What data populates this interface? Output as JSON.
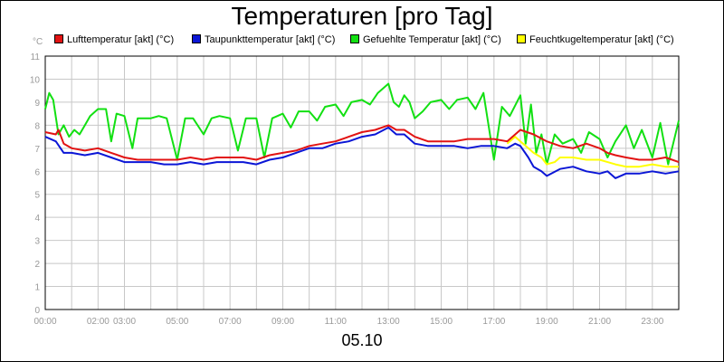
{
  "colors": {
    "red": "#e21313",
    "blue": "#0b16d6",
    "green": "#12e012",
    "yellow": "#ffff00",
    "grid": "#c8c8c8",
    "tick_text": "#999999"
  },
  "chart_data": {
    "type": "line",
    "title": "Temperaturen [pro Tag]",
    "unit": "°C",
    "xlabel": "05.10",
    "ylim": [
      0,
      11
    ],
    "xlim": [
      0,
      24
    ],
    "y_ticks": [
      "0",
      "1",
      "2",
      "3",
      "4",
      "5",
      "6",
      "7",
      "8",
      "9",
      "10",
      "11"
    ],
    "x_ticks": [
      {
        "x": 0,
        "label": "00:00"
      },
      {
        "x": 2,
        "label": "02:00"
      },
      {
        "x": 3,
        "label": "03:00"
      },
      {
        "x": 5,
        "label": "05:00"
      },
      {
        "x": 7,
        "label": "07:00"
      },
      {
        "x": 9,
        "label": "09:00"
      },
      {
        "x": 11,
        "label": "11:00"
      },
      {
        "x": 13,
        "label": "13:00"
      },
      {
        "x": 15,
        "label": "15:00"
      },
      {
        "x": 17,
        "label": "17:00"
      },
      {
        "x": 19,
        "label": "19:00"
      },
      {
        "x": 21,
        "label": "21:00"
      },
      {
        "x": 23,
        "label": "23:00"
      }
    ],
    "x_grid": [
      0,
      1,
      2,
      3,
      4,
      5,
      6,
      7,
      8,
      9,
      10,
      11,
      12,
      13,
      14,
      15,
      16,
      17,
      18,
      19,
      20,
      21,
      22,
      23,
      24
    ],
    "series": [
      {
        "name": "Lufttemperatur [akt] (°C)",
        "color": "#e21313",
        "x": [
          0,
          0.4,
          0.5,
          0.7,
          1,
          1.5,
          2,
          2.5,
          3,
          3.5,
          4,
          4.5,
          5,
          5.5,
          6,
          6.5,
          7,
          7.5,
          8,
          8.5,
          9,
          9.5,
          10,
          10.5,
          11,
          11.5,
          12,
          12.5,
          13,
          13.3,
          13.6,
          14,
          14.5,
          15,
          15.5,
          16,
          16.5,
          17,
          17.5,
          18,
          18.5,
          19,
          19.5,
          20,
          20.5,
          21,
          21.3,
          21.6,
          22,
          22.5,
          23,
          23.5,
          24
        ],
        "values": [
          7.7,
          7.6,
          7.8,
          7.2,
          7.0,
          6.9,
          7.0,
          6.8,
          6.6,
          6.5,
          6.5,
          6.5,
          6.5,
          6.6,
          6.5,
          6.6,
          6.6,
          6.6,
          6.5,
          6.7,
          6.8,
          6.9,
          7.1,
          7.2,
          7.3,
          7.5,
          7.7,
          7.8,
          8.0,
          7.8,
          7.8,
          7.5,
          7.3,
          7.3,
          7.3,
          7.4,
          7.4,
          7.4,
          7.3,
          7.8,
          7.6,
          7.3,
          7.1,
          7.0,
          7.2,
          7.0,
          6.8,
          6.7,
          6.6,
          6.5,
          6.5,
          6.6,
          6.4
        ]
      },
      {
        "name": "Taupunkttemperatur [akt] (°C)",
        "color": "#0b16d6",
        "x": [
          0,
          0.4,
          0.7,
          1,
          1.5,
          2,
          2.5,
          3,
          3.5,
          4,
          4.5,
          5,
          5.5,
          6,
          6.5,
          7,
          7.5,
          8,
          8.5,
          9,
          9.5,
          10,
          10.5,
          11,
          11.5,
          12,
          12.5,
          13,
          13.3,
          13.6,
          14,
          14.5,
          15,
          15.5,
          16,
          16.5,
          17,
          17.5,
          17.8,
          18,
          18.3,
          18.5,
          18.8,
          19,
          19.5,
          20,
          20.5,
          21,
          21.3,
          21.6,
          22,
          22.5,
          23,
          23.5,
          24
        ],
        "values": [
          7.5,
          7.3,
          6.8,
          6.8,
          6.7,
          6.8,
          6.6,
          6.4,
          6.4,
          6.4,
          6.3,
          6.3,
          6.4,
          6.3,
          6.4,
          6.4,
          6.4,
          6.3,
          6.5,
          6.6,
          6.8,
          7.0,
          7.0,
          7.2,
          7.3,
          7.5,
          7.6,
          7.9,
          7.6,
          7.6,
          7.2,
          7.1,
          7.1,
          7.1,
          7.0,
          7.1,
          7.1,
          7.0,
          7.2,
          7.1,
          6.6,
          6.2,
          6.0,
          5.8,
          6.1,
          6.2,
          6.0,
          5.9,
          6.0,
          5.7,
          5.9,
          5.9,
          6.0,
          5.9,
          6.0
        ]
      },
      {
        "name": "Gefuehlte Temperatur [akt] (°C)",
        "color": "#12e012",
        "x": [
          0,
          0.15,
          0.3,
          0.5,
          0.7,
          0.9,
          1.1,
          1.3,
          1.5,
          1.7,
          2,
          2.3,
          2.5,
          2.7,
          3,
          3.3,
          3.5,
          3.7,
          4,
          4.3,
          4.6,
          5,
          5.3,
          5.6,
          6,
          6.3,
          6.6,
          7,
          7.3,
          7.6,
          8,
          8.3,
          8.6,
          9,
          9.3,
          9.6,
          10,
          10.3,
          10.6,
          11,
          11.3,
          11.6,
          12,
          12.3,
          12.6,
          13,
          13.2,
          13.4,
          13.6,
          13.8,
          14,
          14.3,
          14.6,
          15,
          15.3,
          15.6,
          16,
          16.3,
          16.6,
          17,
          17.3,
          17.6,
          18,
          18.2,
          18.4,
          18.6,
          18.8,
          19,
          19.3,
          19.6,
          20,
          20.3,
          20.6,
          21,
          21.3,
          21.6,
          22,
          22.3,
          22.6,
          23,
          23.3,
          23.6,
          24
        ],
        "values": [
          8.7,
          9.4,
          9.1,
          7.6,
          8.0,
          7.5,
          7.8,
          7.6,
          8.0,
          8.4,
          8.7,
          8.7,
          7.3,
          8.5,
          8.4,
          7.0,
          8.3,
          8.3,
          8.3,
          8.4,
          8.3,
          6.5,
          8.3,
          8.3,
          7.6,
          8.3,
          8.4,
          8.3,
          6.9,
          8.3,
          8.3,
          6.6,
          8.3,
          8.5,
          7.9,
          8.6,
          8.6,
          8.2,
          8.8,
          8.9,
          8.4,
          9.0,
          9.1,
          8.9,
          9.4,
          9.8,
          9.0,
          8.8,
          9.3,
          9.0,
          8.3,
          8.6,
          9.0,
          9.1,
          8.7,
          9.1,
          9.2,
          8.7,
          9.4,
          6.5,
          8.8,
          8.4,
          9.3,
          7.2,
          8.9,
          6.8,
          7.6,
          6.3,
          7.6,
          7.2,
          7.4,
          6.8,
          7.7,
          7.4,
          6.6,
          7.3,
          8.0,
          7.0,
          7.8,
          6.6,
          8.1,
          6.3,
          8.2
        ]
      },
      {
        "name": "Feuchtkugeltemperatur [akt] (°C)",
        "color": "#ffff00",
        "x": [
          17.5,
          17.8,
          18,
          18.3,
          18.5,
          18.8,
          19,
          19.3,
          19.5,
          20,
          20.5,
          21,
          21.3,
          21.6,
          22,
          22.5,
          23,
          23.5,
          24
        ],
        "values": [
          7.2,
          7.5,
          7.3,
          7.0,
          6.8,
          6.6,
          6.3,
          6.4,
          6.6,
          6.6,
          6.5,
          6.5,
          6.4,
          6.3,
          6.2,
          6.2,
          6.3,
          6.2,
          6.2
        ]
      }
    ]
  }
}
